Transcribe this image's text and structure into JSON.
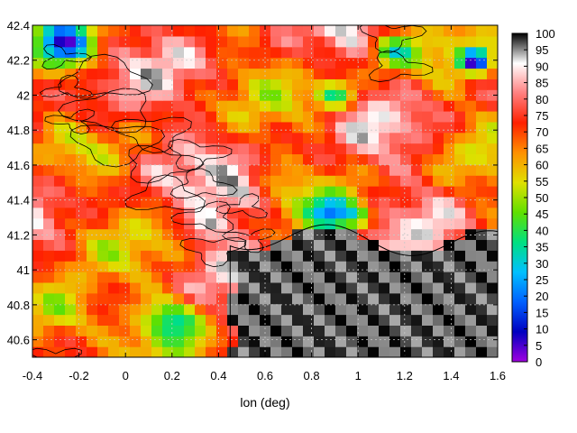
{
  "chart_data": {
    "type": "heatmap",
    "title": "",
    "xlabel": "lon (deg)",
    "ylabel": "",
    "xlim": [
      -0.4,
      1.6
    ],
    "ylim": [
      40.5,
      42.4
    ],
    "x_ticks": [
      "-0.4",
      "-0.2",
      "0",
      "0.2",
      "0.4",
      "0.6",
      "0.8",
      "1",
      "1.2",
      "1.4",
      "1.6"
    ],
    "x_tick_values": [
      -0.4,
      -0.2,
      0,
      0.2,
      0.4,
      0.6,
      0.8,
      1.0,
      1.2,
      1.4,
      1.6
    ],
    "y_ticks": [
      "40.6",
      "40.8",
      "41",
      "41.2",
      "41.4",
      "41.6",
      "41.8",
      "42",
      "42.2",
      "42.4"
    ],
    "y_tick_values": [
      40.6,
      40.8,
      41.0,
      41.2,
      41.4,
      41.6,
      41.8,
      42.0,
      42.2,
      42.4
    ],
    "colorbar": {
      "range": [
        0,
        100
      ],
      "ticks": [
        "0",
        "5",
        "10",
        "15",
        "20",
        "25",
        "30",
        "35",
        "40",
        "45",
        "50",
        "55",
        "60",
        "65",
        "70",
        "75",
        "80",
        "85",
        "90",
        "95",
        "100"
      ],
      "tick_values": [
        0,
        5,
        10,
        15,
        20,
        25,
        30,
        35,
        40,
        45,
        50,
        55,
        60,
        65,
        70,
        75,
        80,
        85,
        90,
        95,
        100
      ],
      "palette": [
        "#a000e0",
        "#0000c0",
        "#0060ff",
        "#00c0ff",
        "#00e080",
        "#60e000",
        "#e0e000",
        "#ff9000",
        "#ff2000",
        "#ff8080",
        "#ffffff",
        "#000000"
      ]
    },
    "grid": "dotted",
    "contours": true,
    "sea_region": {
      "lon_min": 0.45,
      "lat_max": 41.2,
      "value": 100
    }
  }
}
